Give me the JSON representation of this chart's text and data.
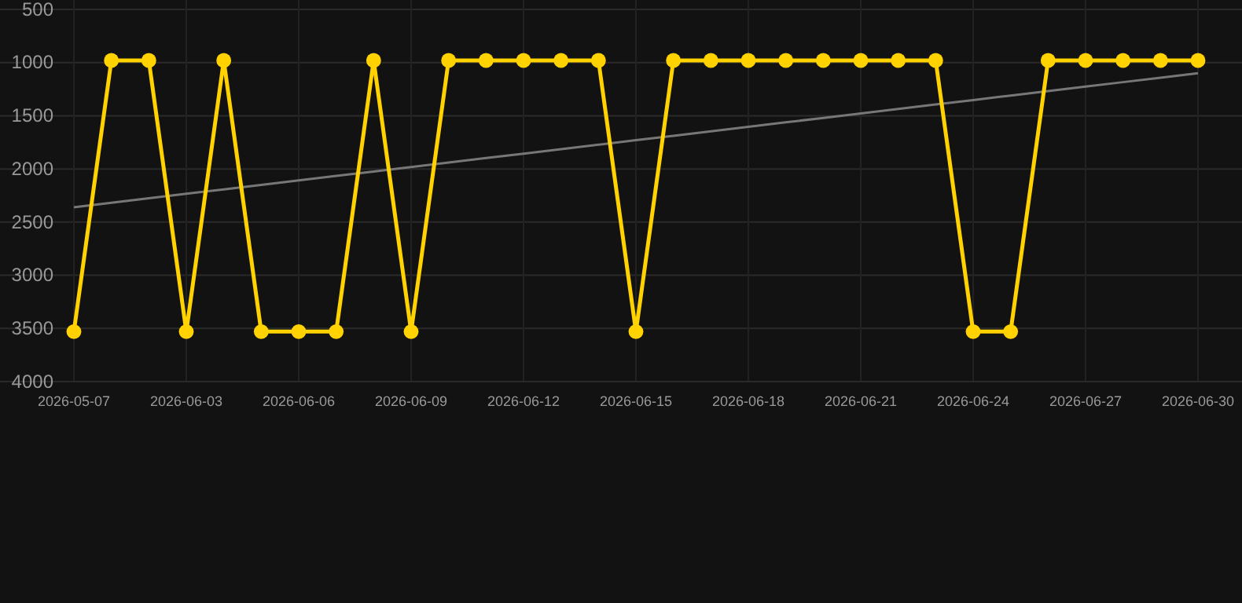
{
  "chart_data": {
    "type": "line",
    "categories": [
      "2026-05-07",
      null,
      null,
      "2026-06-03",
      null,
      null,
      "2026-06-06",
      null,
      null,
      "2026-06-09",
      null,
      null,
      "2026-06-12",
      null,
      null,
      "2026-06-15",
      null,
      null,
      "2026-06-18",
      null,
      null,
      "2026-06-21",
      null,
      null,
      "2026-06-24",
      null,
      null,
      "2026-06-27",
      null,
      null,
      "2026-06-30"
    ],
    "series": [
      {
        "color": "#ffd200",
        "marker": "circle",
        "values": [
          3530,
          980,
          980,
          3530,
          980,
          3530,
          3530,
          3530,
          980,
          3530,
          980,
          980,
          980,
          980,
          980,
          3530,
          980,
          980,
          980,
          980,
          980,
          980,
          980,
          980,
          3530,
          3530,
          980,
          980,
          980,
          980,
          980
        ]
      },
      {
        "type": "line",
        "color": "#777777",
        "marker": "none",
        "values": [
          2360,
          2318,
          2276,
          2234,
          2192,
          2150,
          2108,
          2066,
          2024,
          1982,
          1940,
          1898,
          1856,
          1814,
          1772,
          1730,
          1688,
          1646,
          1604,
          1562,
          1520,
          1478,
          1436,
          1394,
          1352,
          1310,
          1268,
          1226,
          1184,
          1142,
          1100
        ]
      }
    ],
    "ylim": [
      4000,
      500
    ],
    "yticks": [
      500,
      1000,
      1500,
      2000,
      2500,
      3000,
      3500,
      4000
    ],
    "grid": true
  }
}
